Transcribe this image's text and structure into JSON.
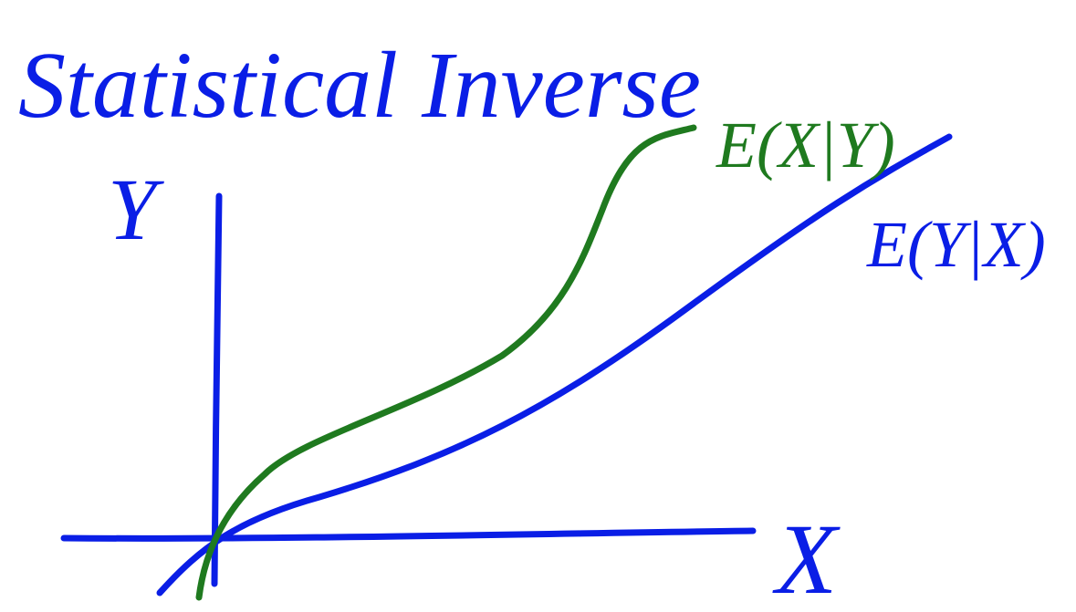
{
  "title": "Statistical Inverse",
  "axes": {
    "y_label": "Y",
    "x_label": "X"
  },
  "curves": [
    {
      "label": "E(X|Y)"
    },
    {
      "label": "E(Y|X)"
    }
  ]
}
